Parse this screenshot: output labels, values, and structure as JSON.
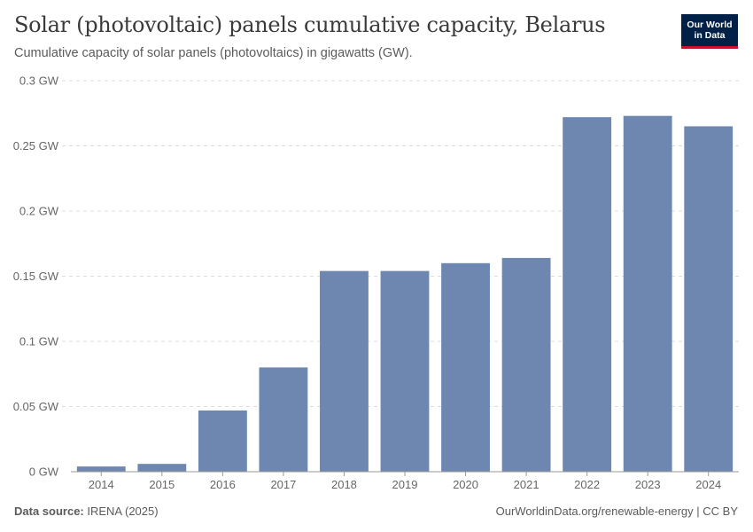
{
  "header": {
    "title": "Solar (photovoltaic) panels cumulative capacity, Belarus",
    "subtitle": "Cumulative capacity of solar panels (photovoltaics) in gigawatts (GW)."
  },
  "logo": {
    "line1": "Our World",
    "line2": "in Data"
  },
  "colors": {
    "bar": "#6d87b0",
    "logo_bg": "#002147",
    "logo_accent": "#c8102e"
  },
  "chart_data": {
    "type": "bar",
    "title": "Solar (photovoltaic) panels cumulative capacity, Belarus",
    "xlabel": "",
    "ylabel": "",
    "unit": "GW",
    "categories": [
      "2014",
      "2015",
      "2016",
      "2017",
      "2018",
      "2019",
      "2020",
      "2021",
      "2022",
      "2023",
      "2024"
    ],
    "values": [
      0.004,
      0.006,
      0.047,
      0.08,
      0.154,
      0.154,
      0.16,
      0.164,
      0.272,
      0.273,
      0.265
    ],
    "ylim": [
      0,
      0.3
    ],
    "yticks": [
      0,
      0.05,
      0.1,
      0.15,
      0.2,
      0.25,
      0.3
    ],
    "ytick_labels": [
      "0 GW",
      "0.05 GW",
      "0.1 GW",
      "0.15 GW",
      "0.2 GW",
      "0.25 GW",
      "0.3 GW"
    ],
    "grid": true
  },
  "footer": {
    "source_label": "Data source:",
    "source_value": "IRENA (2025)",
    "credit": "OurWorldinData.org/renewable-energy | CC BY"
  }
}
